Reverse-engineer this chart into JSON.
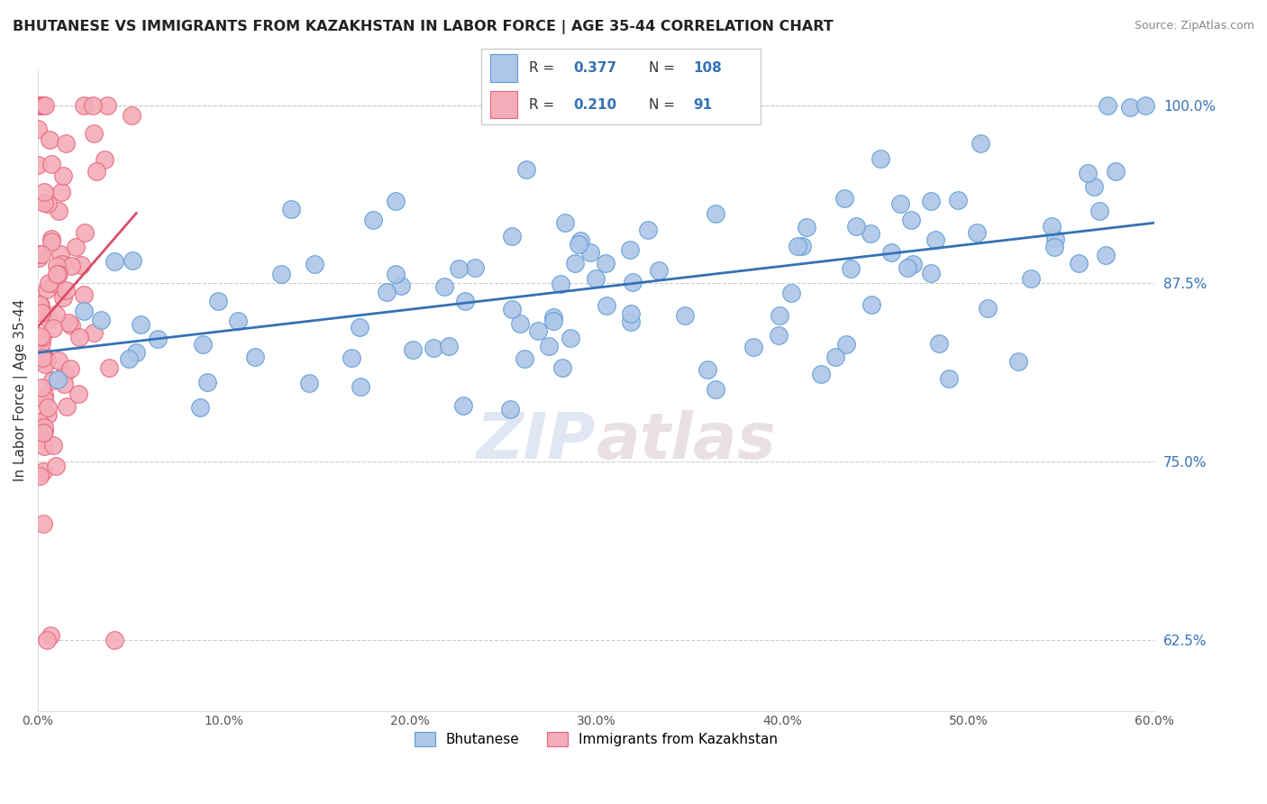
{
  "title": "BHUTANESE VS IMMIGRANTS FROM KAZAKHSTAN IN LABOR FORCE | AGE 35-44 CORRELATION CHART",
  "source": "Source: ZipAtlas.com",
  "ylabel": "In Labor Force | Age 35-44",
  "xlim": [
    0.0,
    0.6
  ],
  "ylim": [
    0.575,
    1.025
  ],
  "xtick_labels": [
    "0.0%",
    "10.0%",
    "20.0%",
    "30.0%",
    "40.0%",
    "50.0%",
    "60.0%"
  ],
  "xtick_vals": [
    0.0,
    0.1,
    0.2,
    0.3,
    0.4,
    0.5,
    0.6
  ],
  "ytick_labels": [
    "62.5%",
    "75.0%",
    "87.5%",
    "100.0%"
  ],
  "ytick_vals": [
    0.625,
    0.75,
    0.875,
    1.0
  ],
  "blue_R": 0.377,
  "blue_N": 108,
  "pink_R": 0.21,
  "pink_N": 91,
  "blue_color": "#aec6e8",
  "pink_color": "#f4adb8",
  "blue_edge_color": "#5b9bd5",
  "pink_edge_color": "#e8637a",
  "blue_line_color": "#3472b5",
  "pink_line_color": "#d94f6a",
  "watermark_color": "#d0d8e8",
  "legend_box_color": "#f0f4fa",
  "legend_border_color": "#c0c8d8"
}
